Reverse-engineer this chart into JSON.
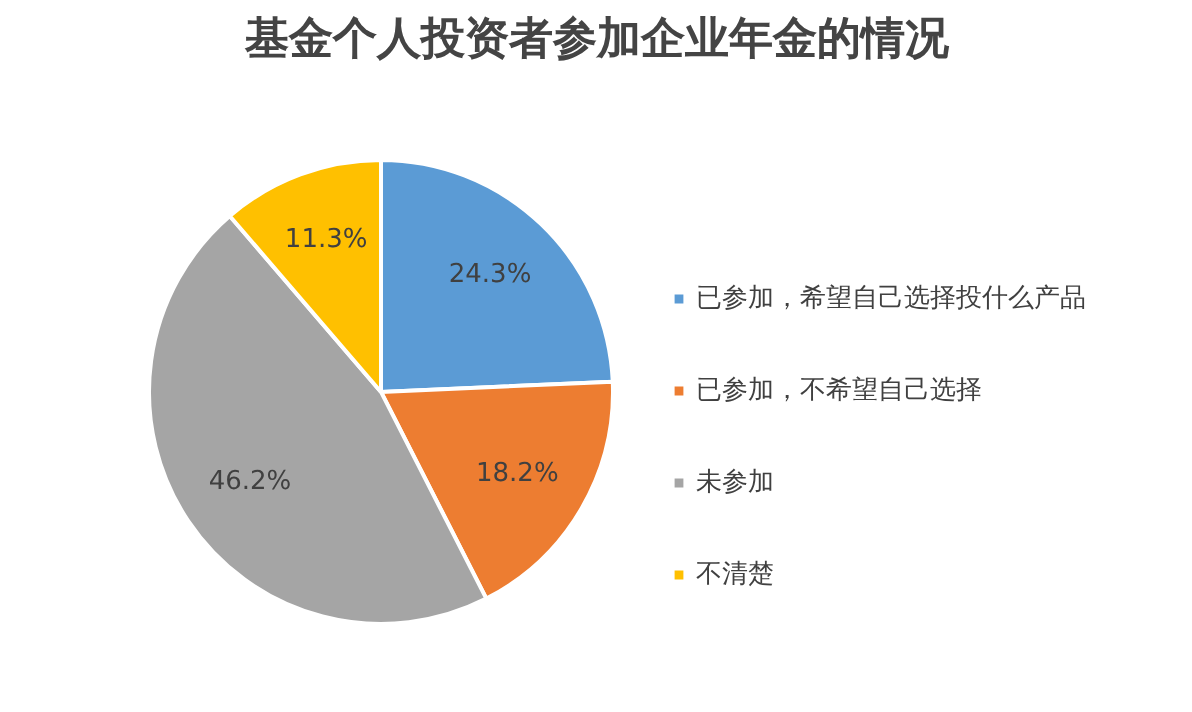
{
  "chart_data": {
    "type": "pie",
    "title": "基金个人投资者参加企业年金的情况",
    "categories": [
      "已参加，希望自己选择投什么产品",
      "已参加，不希望自己选择",
      "未参加",
      "不清楚"
    ],
    "values": [
      24.3,
      18.2,
      46.2,
      11.3
    ],
    "colors": [
      "#5b9bd5",
      "#ed7d31",
      "#a5a5a5",
      "#ffc000"
    ],
    "value_labels": [
      "24.3%",
      "18.2%",
      "46.2%",
      "11.3%"
    ],
    "legend": "right"
  }
}
